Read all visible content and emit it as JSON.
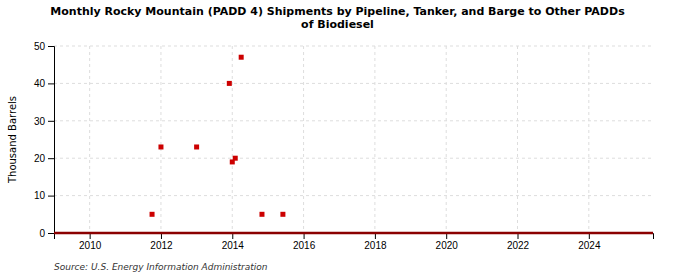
{
  "chart_data": {
    "type": "scatter",
    "title": "Monthly Rocky Mountain (PADD 4) Shipments by Pipeline, Tanker, and Barge to Other PADDs\nof Biodiesel",
    "ylabel": "Thousand Barrels",
    "source": "Source: U.S. Energy Information Administration",
    "x": [
      2011.75,
      2012.0,
      2013.0,
      2013.917,
      2014.0,
      2014.083,
      2014.25,
      2014.833,
      2015.42
    ],
    "values": [
      5,
      23,
      23,
      40,
      19,
      20,
      47,
      5,
      5
    ],
    "color": "#cc0000",
    "marker": "square",
    "xlim": [
      2009.0,
      2025.8
    ],
    "ylim": [
      0,
      50
    ],
    "xticks": [
      2010,
      2012,
      2014,
      2016,
      2018,
      2020,
      2022,
      2024
    ],
    "yticks": [
      0,
      10,
      20,
      30,
      40,
      50
    ],
    "grid": true
  }
}
